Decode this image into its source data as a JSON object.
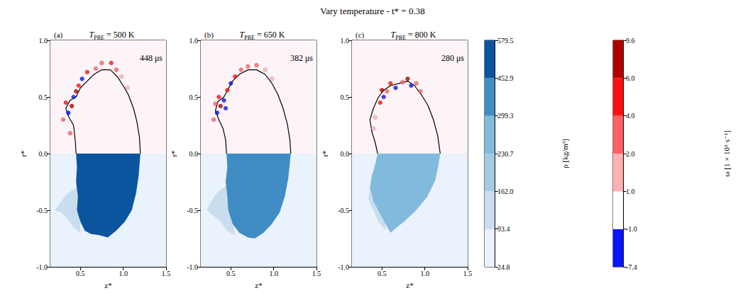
{
  "title": "Vary temperature - t* = 0.38",
  "chart_data": [
    {
      "type": "field",
      "letter": "(a)",
      "title": {
        "main": "T",
        "sub": "PRE",
        "rest": " = 500 K"
      },
      "annotation": "448 μs",
      "x_label": "z*",
      "y_label": "r*",
      "xlim": [
        0.15,
        1.5
      ],
      "xticks": [
        0.5,
        {
          "value": 1,
          "label": "1.0"
        },
        1.5
      ],
      "ylim": [
        -1,
        1
      ],
      "yticks": [
        {
          "value": -1,
          "label": "-1.0"
        },
        -0.5,
        {
          "value": 0,
          "label": "0.0"
        },
        0.5,
        {
          "value": 1,
          "label": "1.0"
        }
      ],
      "mirror_r": 0,
      "ambient_density": 50,
      "droplet_density": 520,
      "density_boundary": [
        [
          0.45,
          0
        ],
        [
          0.46,
          -0.12
        ],
        [
          0.45,
          -0.25
        ],
        [
          0.47,
          -0.38
        ],
        [
          0.46,
          -0.5
        ],
        [
          0.5,
          -0.6
        ],
        [
          0.55,
          -0.68
        ],
        [
          0.62,
          -0.71
        ],
        [
          0.72,
          -0.72
        ],
        [
          0.82,
          -0.74
        ],
        [
          0.92,
          -0.68
        ],
        [
          1.02,
          -0.6
        ],
        [
          1.1,
          -0.5
        ],
        [
          1.15,
          -0.35
        ],
        [
          1.18,
          -0.2
        ],
        [
          1.2,
          0
        ]
      ],
      "wisps": [
        {
          "density": 130,
          "boundary": [
            [
              0.46,
              -0.3
            ],
            [
              0.35,
              -0.35
            ],
            [
              0.25,
              -0.45
            ],
            [
              0.2,
              -0.5
            ],
            [
              0.28,
              -0.52
            ],
            [
              0.35,
              -0.58
            ],
            [
              0.42,
              -0.65
            ],
            [
              0.5,
              -0.7
            ],
            [
              0.5,
              -0.6
            ],
            [
              0.46,
              -0.5
            ]
          ]
        }
      ],
      "interface": [
        [
          0.45,
          0
        ],
        [
          0.44,
          0.12
        ],
        [
          0.42,
          0.25
        ],
        [
          0.36,
          0.33
        ],
        [
          0.33,
          0.4
        ],
        [
          0.38,
          0.47
        ],
        [
          0.45,
          0.5
        ],
        [
          0.5,
          0.58
        ],
        [
          0.58,
          0.64
        ],
        [
          0.66,
          0.7
        ],
        [
          0.75,
          0.74
        ],
        [
          0.85,
          0.74
        ],
        [
          0.93,
          0.68
        ],
        [
          1.0,
          0.6
        ],
        [
          1.06,
          0.52
        ],
        [
          1.12,
          0.4
        ],
        [
          1.16,
          0.28
        ],
        [
          1.19,
          0.14
        ],
        [
          1.2,
          0
        ]
      ],
      "vortices": [
        [
          0.36,
          0.36,
          -5
        ],
        [
          0.4,
          0.42,
          7
        ],
        [
          0.33,
          0.45,
          5
        ],
        [
          0.42,
          0.5,
          -3
        ],
        [
          0.48,
          0.6,
          6
        ],
        [
          0.52,
          0.66,
          -2
        ],
        [
          0.58,
          0.72,
          5
        ],
        [
          0.68,
          0.75,
          4
        ],
        [
          0.75,
          0.8,
          3
        ],
        [
          0.86,
          0.8,
          5
        ],
        [
          0.92,
          0.74,
          2.5
        ],
        [
          0.98,
          0.68,
          1.5
        ],
        [
          1.05,
          0.58,
          1.5
        ],
        [
          0.3,
          0.3,
          3
        ],
        [
          0.38,
          0.18,
          2.5
        ],
        [
          0.45,
          0.55,
          8
        ]
      ]
    },
    {
      "type": "field",
      "letter": "(b)",
      "title": {
        "main": "T",
        "sub": "PRE",
        "rest": " = 650 K"
      },
      "annotation": "382 μs",
      "x_label": "z*",
      "y_label": "r*",
      "xlim": [
        0.15,
        1.5
      ],
      "xticks": [
        0.5,
        {
          "value": 1,
          "label": "1.0"
        },
        1.5
      ],
      "ylim": [
        -1,
        1
      ],
      "yticks": [
        {
          "value": -1,
          "label": "-1.0"
        },
        -0.5,
        {
          "value": 0,
          "label": "0.0"
        },
        0.5,
        {
          "value": 1,
          "label": "1.0"
        }
      ],
      "mirror_r": 0,
      "ambient_density": 50,
      "droplet_density": 380,
      "density_boundary": [
        [
          0.45,
          0
        ],
        [
          0.46,
          -0.12
        ],
        [
          0.44,
          -0.25
        ],
        [
          0.46,
          -0.38
        ],
        [
          0.47,
          -0.5
        ],
        [
          0.52,
          -0.62
        ],
        [
          0.6,
          -0.7
        ],
        [
          0.7,
          -0.74
        ],
        [
          0.78,
          -0.75
        ],
        [
          0.88,
          -0.7
        ],
        [
          0.98,
          -0.62
        ],
        [
          1.07,
          -0.52
        ],
        [
          1.13,
          -0.38
        ],
        [
          1.17,
          -0.22
        ],
        [
          1.2,
          0
        ]
      ],
      "wisps": [
        {
          "density": 130,
          "boundary": [
            [
              0.46,
              -0.28
            ],
            [
              0.36,
              -0.33
            ],
            [
              0.27,
              -0.42
            ],
            [
              0.22,
              -0.5
            ],
            [
              0.3,
              -0.55
            ],
            [
              0.38,
              -0.6
            ],
            [
              0.45,
              -0.68
            ],
            [
              0.55,
              -0.72
            ],
            [
              0.52,
              -0.62
            ],
            [
              0.47,
              -0.5
            ]
          ]
        }
      ],
      "interface": [
        [
          0.45,
          0
        ],
        [
          0.44,
          0.12
        ],
        [
          0.41,
          0.22
        ],
        [
          0.36,
          0.3
        ],
        [
          0.32,
          0.38
        ],
        [
          0.35,
          0.46
        ],
        [
          0.42,
          0.5
        ],
        [
          0.47,
          0.57
        ],
        [
          0.52,
          0.64
        ],
        [
          0.6,
          0.7
        ],
        [
          0.7,
          0.74
        ],
        [
          0.8,
          0.74
        ],
        [
          0.9,
          0.7
        ],
        [
          0.98,
          0.62
        ],
        [
          1.05,
          0.52
        ],
        [
          1.11,
          0.4
        ],
        [
          1.16,
          0.26
        ],
        [
          1.19,
          0.12
        ],
        [
          1.2,
          0
        ]
      ],
      "vortices": [
        [
          0.34,
          0.36,
          -5
        ],
        [
          0.38,
          0.42,
          8
        ],
        [
          0.32,
          0.44,
          4
        ],
        [
          0.42,
          0.47,
          -3
        ],
        [
          0.36,
          0.5,
          5
        ],
        [
          0.46,
          0.56,
          6
        ],
        [
          0.5,
          0.62,
          -2
        ],
        [
          0.55,
          0.68,
          5
        ],
        [
          0.62,
          0.74,
          4
        ],
        [
          0.7,
          0.77,
          3
        ],
        [
          0.8,
          0.78,
          2.5
        ],
        [
          0.9,
          0.74,
          1.5
        ],
        [
          0.98,
          0.66,
          1.5
        ],
        [
          0.3,
          0.3,
          2.5
        ],
        [
          0.44,
          0.4,
          -4
        ]
      ]
    },
    {
      "type": "field",
      "letter": "(c)",
      "title": {
        "main": "T",
        "sub": "PRE",
        "rest": " = 800 K"
      },
      "annotation": "280 μs",
      "x_label": "z*",
      "y_label": "r*",
      "xlim": [
        0.15,
        1.5
      ],
      "xticks": [
        0.5,
        {
          "value": 1,
          "label": "1.0"
        },
        1.5
      ],
      "ylim": [
        -1,
        1
      ],
      "yticks": [
        {
          "value": -1,
          "label": "-1.0"
        },
        -0.5,
        {
          "value": 0,
          "label": "0.0"
        },
        0.5,
        {
          "value": 1,
          "label": "1.0"
        }
      ],
      "mirror_r": 0,
      "ambient_density": 50,
      "droplet_density": 260,
      "density_boundary": [
        [
          0.45,
          0
        ],
        [
          0.42,
          -0.1
        ],
        [
          0.38,
          -0.2
        ],
        [
          0.36,
          -0.3
        ],
        [
          0.4,
          -0.42
        ],
        [
          0.47,
          -0.52
        ],
        [
          0.54,
          -0.62
        ],
        [
          0.6,
          -0.7
        ],
        [
          0.66,
          -0.66
        ],
        [
          0.76,
          -0.6
        ],
        [
          0.9,
          -0.5
        ],
        [
          1.03,
          -0.38
        ],
        [
          1.12,
          -0.24
        ],
        [
          1.16,
          -0.1
        ],
        [
          1.18,
          0
        ]
      ],
      "wisps": [
        {
          "density": 130,
          "boundary": [
            [
              0.36,
              -0.3
            ],
            [
              0.34,
              -0.4
            ],
            [
              0.4,
              -0.5
            ],
            [
              0.46,
              -0.6
            ],
            [
              0.54,
              -0.68
            ],
            [
              0.54,
              -0.62
            ],
            [
              0.47,
              -0.52
            ],
            [
              0.4,
              -0.42
            ]
          ]
        }
      ],
      "interface": [
        [
          0.45,
          0
        ],
        [
          0.42,
          0.1
        ],
        [
          0.38,
          0.2
        ],
        [
          0.36,
          0.3
        ],
        [
          0.4,
          0.4
        ],
        [
          0.46,
          0.5
        ],
        [
          0.52,
          0.56
        ],
        [
          0.6,
          0.6
        ],
        [
          0.7,
          0.62
        ],
        [
          0.8,
          0.64
        ],
        [
          0.88,
          0.6
        ],
        [
          0.96,
          0.52
        ],
        [
          1.04,
          0.42
        ],
        [
          1.1,
          0.3
        ],
        [
          1.15,
          0.16
        ],
        [
          1.18,
          0
        ]
      ],
      "vortices": [
        [
          0.48,
          0.45,
          6
        ],
        [
          0.52,
          0.5,
          -4
        ],
        [
          0.5,
          0.56,
          8
        ],
        [
          0.56,
          0.55,
          3
        ],
        [
          0.6,
          0.62,
          5
        ],
        [
          0.66,
          0.58,
          -2
        ],
        [
          0.8,
          0.66,
          7
        ],
        [
          0.84,
          0.6,
          -3
        ],
        [
          0.9,
          0.62,
          4
        ],
        [
          0.95,
          0.55,
          2.5
        ],
        [
          0.42,
          0.32,
          1.5
        ],
        [
          0.4,
          0.22,
          1.5
        ],
        [
          0.74,
          0.63,
          3
        ]
      ]
    }
  ],
  "density_colorbar": {
    "title": "ρ [kg/m³]",
    "ticks": [
      24.8,
      93.4,
      {
        "value": 162,
        "label": "162.0"
      },
      230.7,
      299.3,
      452.9,
      579.5
    ],
    "colors": [
      "#eaf2fb",
      "#c9ddf0",
      "#a3cbe4",
      "#82badd",
      "#3f8dc4",
      "#0b559f"
    ]
  },
  "vorticity_colorbar": {
    "title": "ω [1 × 10⁵ s⁻¹]",
    "ticks": [
      -7.4,
      {
        "value": -1,
        "label": "-1.0"
      },
      {
        "value": 1,
        "label": "1.0"
      },
      {
        "value": 2,
        "label": "2.0"
      },
      {
        "value": 4,
        "label": "4.0"
      },
      {
        "value": 6,
        "label": "6.0"
      },
      9.6
    ],
    "colors": [
      "#0a14ff",
      "#ffffff",
      "#ffb0b0",
      "#ff6161",
      "#ff1010",
      "#b20000"
    ]
  }
}
